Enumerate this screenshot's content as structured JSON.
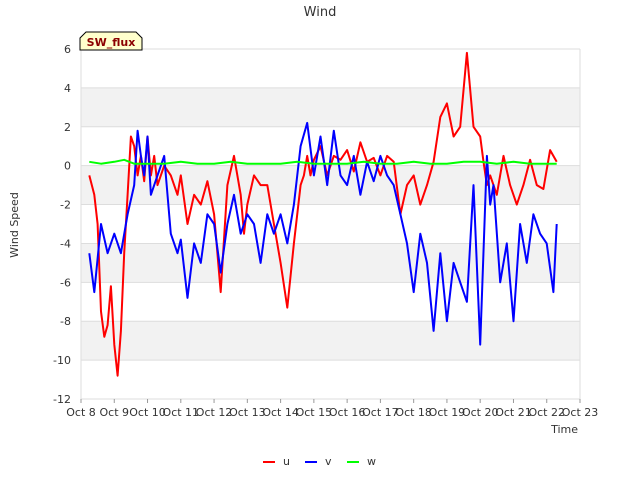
{
  "chart_data": {
    "type": "line",
    "title": "Wind",
    "xlabel": "Time",
    "ylabel": "Wind Speed",
    "badge": "SW_flux",
    "ylim": [
      -12,
      6
    ],
    "yticks": [
      -12,
      -10,
      -8,
      -6,
      -4,
      -2,
      0,
      2,
      4,
      6
    ],
    "xlim": [
      8,
      23
    ],
    "xticks": [
      {
        "value": 8,
        "label": "Oct 8"
      },
      {
        "value": 9,
        "label": "Oct 9"
      },
      {
        "value": 10,
        "label": "Oct 10"
      },
      {
        "value": 11,
        "label": "Oct 11"
      },
      {
        "value": 12,
        "label": "Oct 12"
      },
      {
        "value": 13,
        "label": "Oct 13"
      },
      {
        "value": 14,
        "label": "Oct 14"
      },
      {
        "value": 15,
        "label": "Oct 15"
      },
      {
        "value": 16,
        "label": "Oct 16"
      },
      {
        "value": 17,
        "label": "Oct 17"
      },
      {
        "value": 18,
        "label": "Oct 18"
      },
      {
        "value": 19,
        "label": "Oct 19"
      },
      {
        "value": 20,
        "label": "Oct 20"
      },
      {
        "value": 21,
        "label": "Oct 21"
      },
      {
        "value": 22,
        "label": "Oct 22"
      },
      {
        "value": 23,
        "label": "Oct 23"
      }
    ],
    "grid": true,
    "legend_position": "bottom-center",
    "series": [
      {
        "name": "u",
        "color": "#ff0000",
        "x": [
          8.25,
          8.4,
          8.5,
          8.6,
          8.7,
          8.8,
          8.9,
          9.0,
          9.1,
          9.2,
          9.3,
          9.4,
          9.5,
          9.6,
          9.7,
          9.8,
          9.9,
          10.0,
          10.1,
          10.2,
          10.3,
          10.5,
          10.7,
          10.9,
          11.0,
          11.2,
          11.4,
          11.6,
          11.8,
          12.0,
          12.2,
          12.4,
          12.6,
          12.8,
          12.9,
          13.0,
          13.2,
          13.4,
          13.6,
          13.8,
          14.0,
          14.2,
          14.4,
          14.6,
          14.7,
          14.8,
          14.9,
          15.0,
          15.2,
          15.4,
          15.6,
          15.8,
          16.0,
          16.2,
          16.4,
          16.6,
          16.8,
          17.0,
          17.2,
          17.4,
          17.6,
          17.8,
          18.0,
          18.2,
          18.4,
          18.6,
          18.8,
          19.0,
          19.2,
          19.4,
          19.6,
          19.8,
          20.0,
          20.1,
          20.2,
          20.3,
          20.5,
          20.7,
          20.9,
          21.1,
          21.3,
          21.5,
          21.7,
          21.9,
          22.1,
          22.3
        ],
        "y": [
          -0.5,
          -1.5,
          -3,
          -7.5,
          -8.8,
          -8.2,
          -6.2,
          -9.2,
          -10.8,
          -8.5,
          -4.5,
          -1.5,
          1.5,
          1.0,
          -0.5,
          0.5,
          -0.8,
          1.5,
          -0.5,
          0.5,
          -1,
          0,
          -0.5,
          -1.5,
          -0.5,
          -3,
          -1.5,
          -2,
          -0.8,
          -2.5,
          -6.5,
          -1,
          0.5,
          -1.5,
          -3.5,
          -2,
          -0.5,
          -1,
          -1,
          -3,
          -5,
          -7.3,
          -4,
          -1,
          -0.5,
          0.5,
          -0.5,
          0.3,
          1.0,
          -0.5,
          0.5,
          0.3,
          0.8,
          -0.3,
          1.2,
          0.2,
          0.4,
          -0.5,
          0.5,
          0.2,
          -2.5,
          -1,
          -0.5,
          -2,
          -1,
          0.2,
          2.5,
          3.2,
          1.5,
          2.0,
          5.8,
          2,
          1.5,
          0.2,
          -1,
          -0.5,
          -1.5,
          0.5,
          -1,
          -2,
          -1,
          0.3,
          -1,
          -1.2,
          0.8,
          0.2
        ]
      },
      {
        "name": "v",
        "color": "#0000ff",
        "x": [
          8.25,
          8.4,
          8.6,
          8.8,
          9.0,
          9.2,
          9.4,
          9.6,
          9.7,
          9.8,
          9.9,
          10.0,
          10.1,
          10.3,
          10.5,
          10.7,
          10.9,
          11.0,
          11.2,
          11.4,
          11.6,
          11.8,
          12.0,
          12.2,
          12.4,
          12.6,
          12.8,
          13.0,
          13.2,
          13.4,
          13.6,
          13.8,
          14.0,
          14.2,
          14.4,
          14.6,
          14.8,
          15.0,
          15.2,
          15.4,
          15.6,
          15.8,
          16.0,
          16.2,
          16.4,
          16.6,
          16.8,
          17.0,
          17.2,
          17.4,
          17.6,
          17.8,
          18.0,
          18.2,
          18.4,
          18.6,
          18.8,
          19.0,
          19.2,
          19.4,
          19.6,
          19.8,
          20.0,
          20.2,
          20.3,
          20.4,
          20.6,
          20.8,
          21.0,
          21.2,
          21.4,
          21.6,
          21.8,
          22.0,
          22.2,
          22.3
        ],
        "y": [
          -4.5,
          -6.5,
          -3,
          -4.5,
          -3.5,
          -4.5,
          -2.5,
          -1,
          1.8,
          0.5,
          -0.5,
          1.5,
          -1.5,
          -0.5,
          0.5,
          -3.5,
          -4.5,
          -3.8,
          -6.8,
          -4,
          -5,
          -2.5,
          -3,
          -5.5,
          -3,
          -1.5,
          -3.5,
          -2.5,
          -3,
          -5,
          -2.5,
          -3.5,
          -2.5,
          -4,
          -2,
          1,
          2.2,
          -0.5,
          1.5,
          -1,
          1.8,
          -0.5,
          -1,
          0.5,
          -1.5,
          0.2,
          -0.8,
          0.5,
          -0.5,
          -1,
          -2.5,
          -4,
          -6.5,
          -3.5,
          -5,
          -8.5,
          -4.5,
          -8,
          -5,
          -6,
          -7,
          -1,
          -9.2,
          0.5,
          -2,
          -1,
          -6,
          -4,
          -8,
          -3,
          -5,
          -2.5,
          -3.5,
          -4,
          -6.5,
          -3
        ]
      },
      {
        "name": "w",
        "color": "#00ff00",
        "x": [
          8.25,
          8.6,
          9.0,
          9.3,
          9.6,
          10.0,
          10.5,
          11.0,
          11.5,
          12.0,
          12.5,
          13.0,
          13.5,
          14.0,
          14.5,
          15.0,
          15.5,
          16.0,
          16.5,
          17.0,
          17.5,
          18.0,
          18.5,
          19.0,
          19.5,
          20.0,
          20.5,
          21.0,
          21.5,
          22.0,
          22.3
        ],
        "y": [
          0.2,
          0.1,
          0.2,
          0.3,
          0.1,
          0.1,
          0.1,
          0.2,
          0.1,
          0.1,
          0.2,
          0.1,
          0.1,
          0.1,
          0.2,
          0.1,
          0.1,
          0.1,
          0.2,
          0.1,
          0.1,
          0.2,
          0.1,
          0.1,
          0.2,
          0.2,
          0.1,
          0.2,
          0.1,
          0.1,
          0.1
        ]
      }
    ]
  }
}
